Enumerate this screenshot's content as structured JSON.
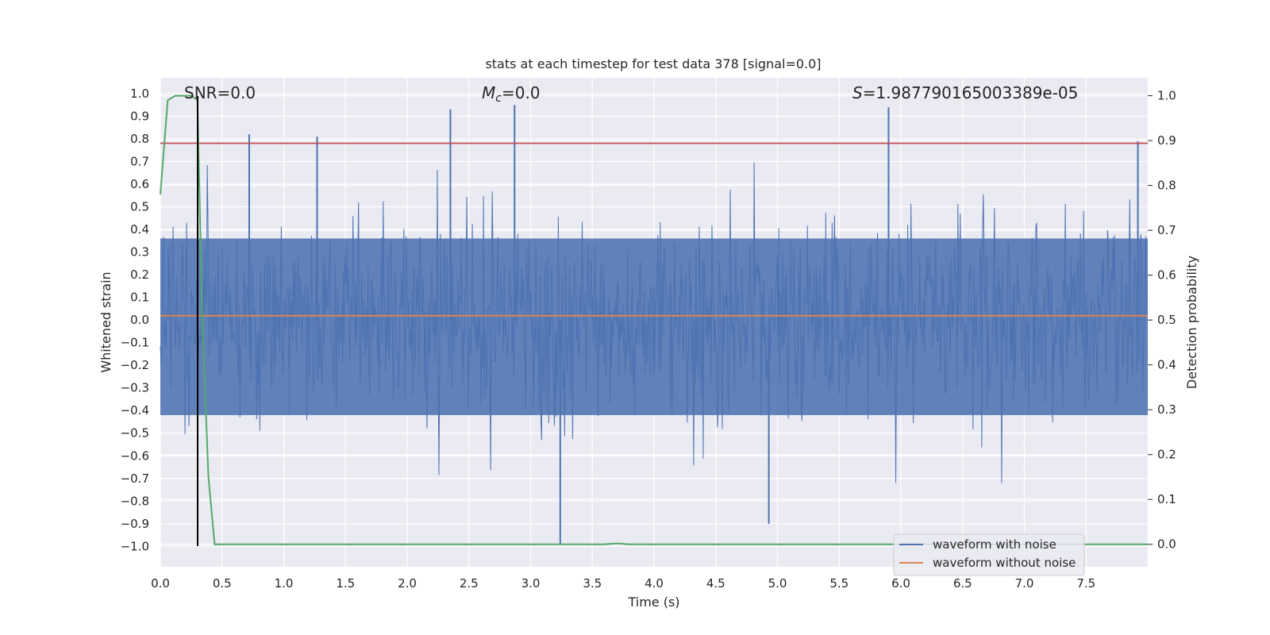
{
  "chart_data": {
    "type": "line",
    "title": "stats at each timestep for test data 378 [signal=0.0]",
    "xlabel": "Time (s)",
    "ylabel": "Whitened strain",
    "y2label": "Detection probability",
    "xlim": [
      0.0,
      8.0
    ],
    "ylim": [
      -1.09,
      1.07
    ],
    "y2lim": [
      -0.05,
      1.04
    ],
    "x_ticks": [
      "0.0",
      "0.5",
      "1.0",
      "1.5",
      "2.0",
      "2.5",
      "3.0",
      "3.5",
      "4.0",
      "4.5",
      "5.0",
      "5.5",
      "6.0",
      "6.5",
      "7.0",
      "7.5"
    ],
    "y_ticks": [
      "1.0",
      "0.9",
      "0.8",
      "0.7",
      "0.6",
      "0.5",
      "0.4",
      "0.3",
      "0.2",
      "0.1",
      "0.0",
      "−0.1",
      "−0.2",
      "−0.3",
      "−0.4",
      "−0.5",
      "−0.6",
      "−0.7",
      "−0.8",
      "−0.9",
      "−1.0"
    ],
    "y2_ticks": [
      "1.0",
      "0.9",
      "0.8",
      "0.7",
      "0.6",
      "0.5",
      "0.4",
      "0.3",
      "0.2",
      "0.1",
      "0.0"
    ],
    "annotations": {
      "snr": "SNR=0.0",
      "mc_symbol": "M",
      "mc_sub": "c",
      "mc_value": "=0.0",
      "s_symbol": "S",
      "s_value": "=1.987790165003389e-05"
    },
    "threshold": 0.9,
    "detection_marker_time": 0.3,
    "series": [
      {
        "name": "waveform with noise",
        "color": "#4c72b0",
        "note": "dense whitened noise, mostly within ±0.4, occasional spikes",
        "notable_peaks": [
          {
            "x": 0.72,
            "y": 0.82
          },
          {
            "x": 1.27,
            "y": 0.81
          },
          {
            "x": 2.35,
            "y": 0.93
          },
          {
            "x": 2.87,
            "y": 0.95
          },
          {
            "x": 3.24,
            "y": -0.99
          },
          {
            "x": 4.93,
            "y": -0.9
          },
          {
            "x": 5.9,
            "y": 0.94
          },
          {
            "x": 7.92,
            "y": 0.79
          }
        ]
      },
      {
        "name": "waveform without noise",
        "color": "#dd8452",
        "x": [
          0.0,
          8.0
        ],
        "y": [
          0.0,
          0.0
        ]
      },
      {
        "name": "detection probability",
        "color": "#55a868",
        "axis": "right",
        "x": [
          0.0,
          0.06,
          0.12,
          0.2,
          0.25,
          0.3,
          0.34,
          0.39,
          0.44,
          0.5,
          3.6,
          3.7,
          3.8,
          8.0
        ],
        "y": [
          0.78,
          0.99,
          1.0,
          1.0,
          1.0,
          0.99,
          0.5,
          0.15,
          0.0,
          0.0,
          0.0,
          0.002,
          0.0,
          0.0
        ]
      }
    ],
    "legend": [
      "waveform with noise",
      "waveform without noise"
    ],
    "legend_position": "lower-right",
    "grid": true,
    "colors": {
      "background": "#eaeaf2",
      "grid": "#ffffff",
      "threshold": "#c44e52",
      "marker": "#000000"
    }
  }
}
